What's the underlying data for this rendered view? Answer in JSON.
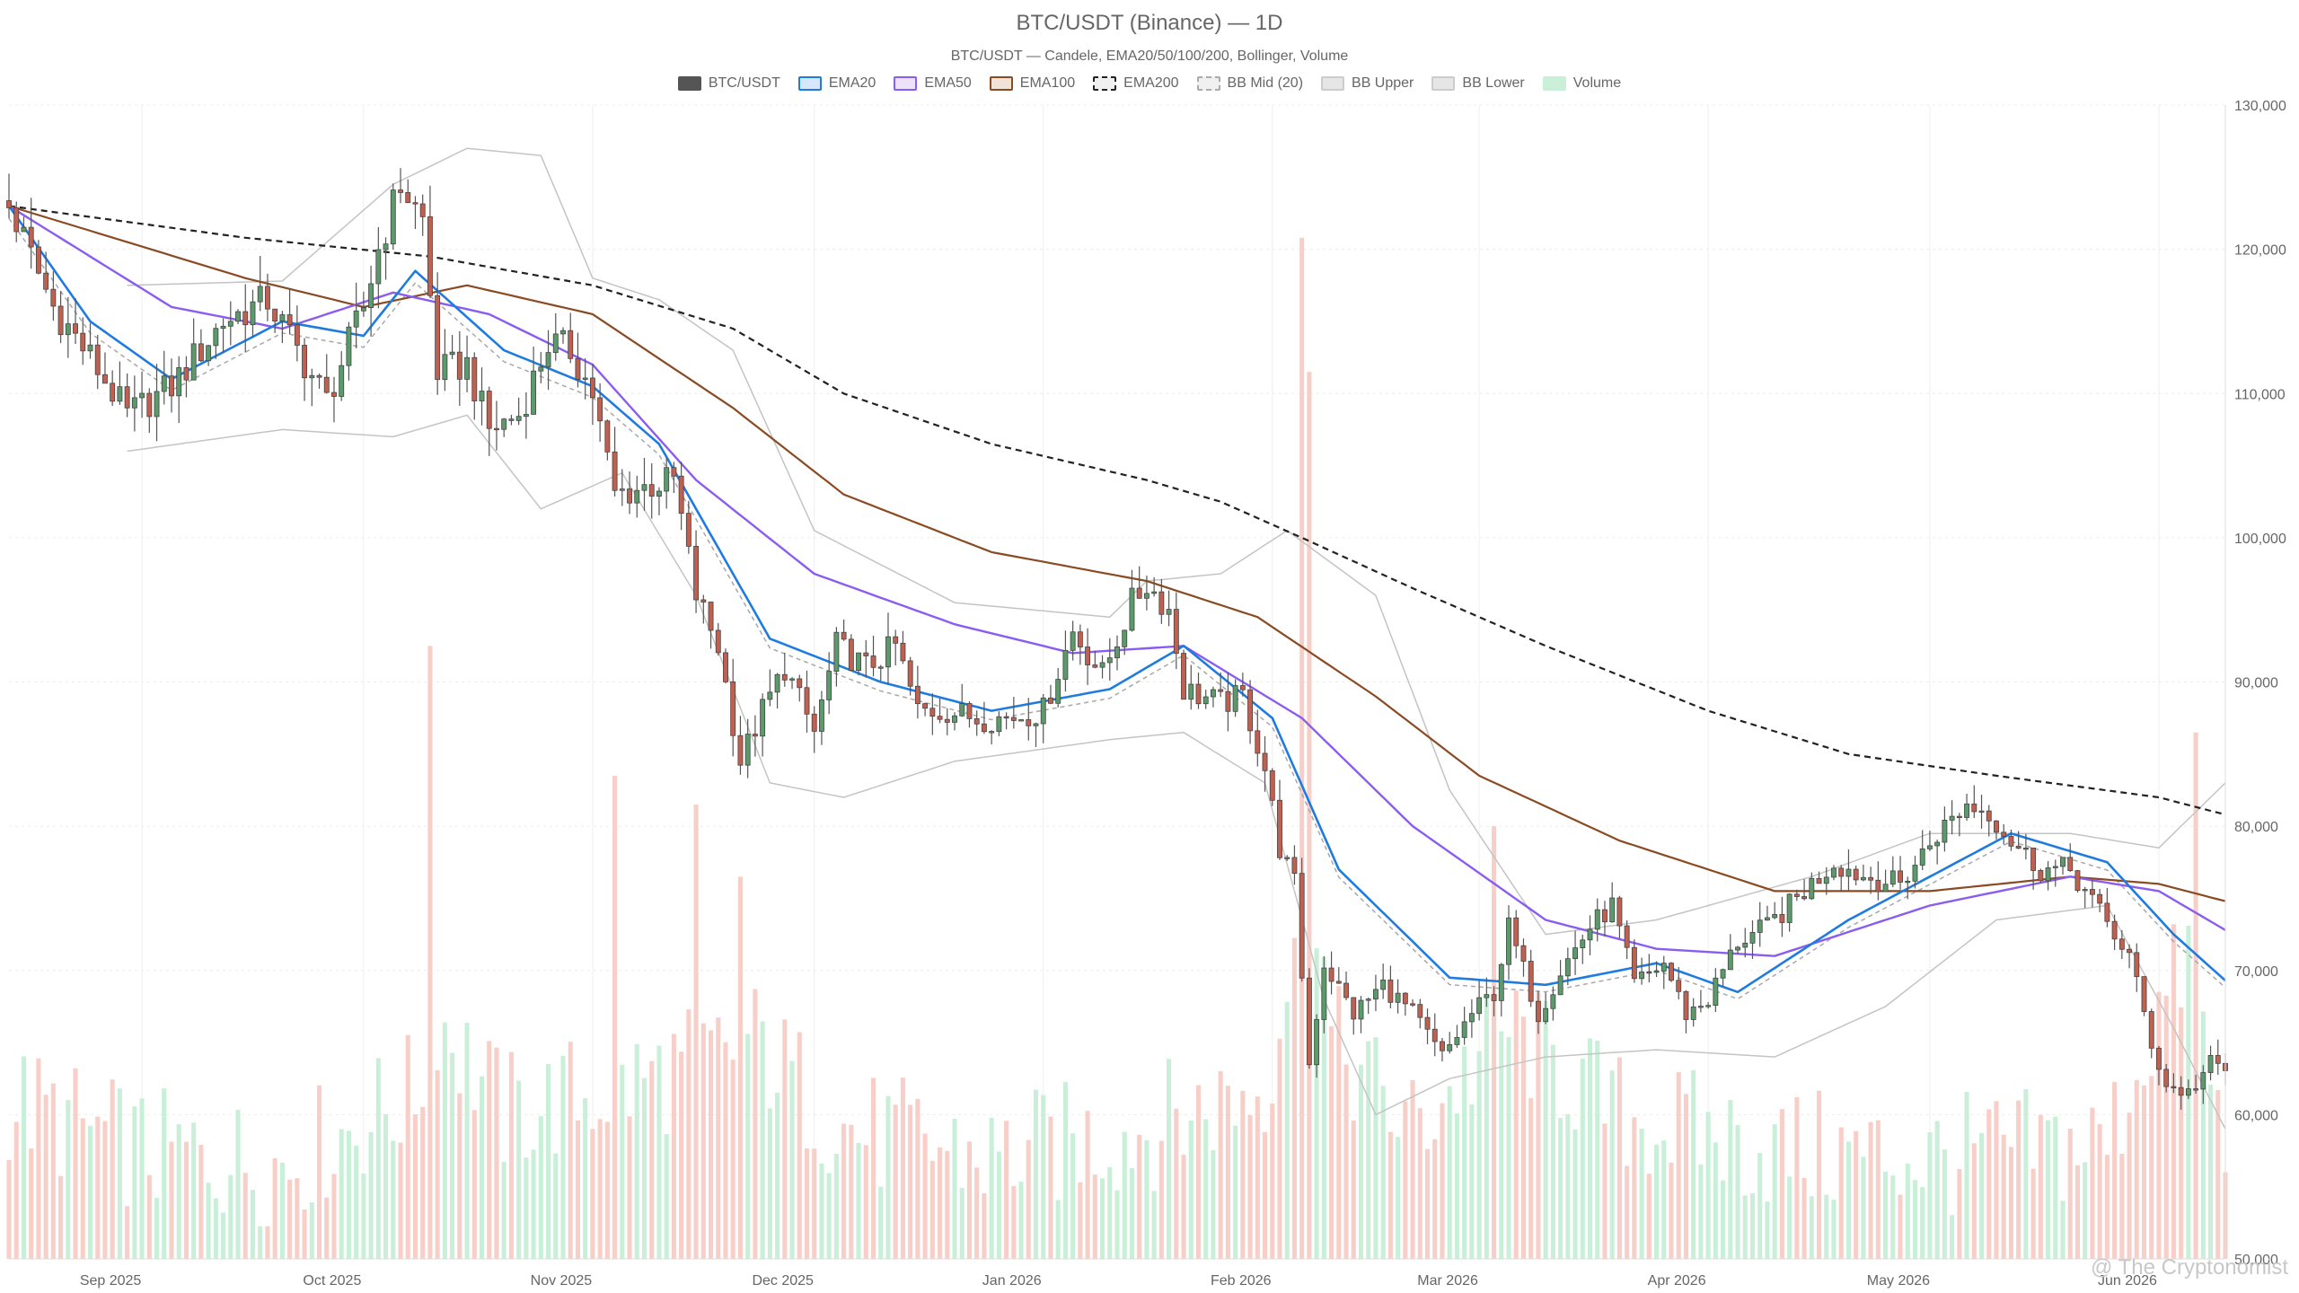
{
  "chart_data": {
    "type": "candlestick",
    "title": "BTC/USDT (Binance) — 1D",
    "subtitle": "BTC/USDT — Candele, EMA20/50/100/200, Bollinger, Volume",
    "legend": [
      {
        "name": "BTC/USDT",
        "fill": "#555555",
        "border": "#555555",
        "dashed": false
      },
      {
        "name": "EMA20",
        "fill": "#d6e6fb",
        "border": "#1e7be0",
        "dashed": false
      },
      {
        "name": "EMA50",
        "fill": "#ece2fb",
        "border": "#8b5cf0",
        "dashed": false
      },
      {
        "name": "EMA100",
        "fill": "#f1e3d8",
        "border": "#8a4a22",
        "dashed": false
      },
      {
        "name": "EMA200",
        "fill": "#f0f0f0",
        "border": "#222222",
        "dashed": true
      },
      {
        "name": "BB Mid (20)",
        "fill": "#f0f0f0",
        "border": "#aaaaaa",
        "dashed": true
      },
      {
        "name": "BB Upper",
        "fill": "#e6e6e6",
        "border": "#cccccc",
        "dashed": false
      },
      {
        "name": "BB Lower",
        "fill": "#e6e6e6",
        "border": "#cccccc",
        "dashed": false
      },
      {
        "name": "Volume",
        "fill": "#c9efd9",
        "border": "#c9efd9",
        "dashed": false
      }
    ],
    "y_axis": {
      "min": 50000,
      "max": 130000,
      "ticks": [
        50000,
        60000,
        70000,
        80000,
        90000,
        100000,
        110000,
        120000,
        130000
      ],
      "tick_labels": [
        "50,000",
        "60,000",
        "70,000",
        "80,000",
        "90,000",
        "100,000",
        "110,000",
        "120,000",
        "130,000"
      ],
      "position": "right"
    },
    "x_axis": {
      "start": "2025-08-14",
      "end": "2026-06-10",
      "ticks": [
        {
          "date": "2025-09-01",
          "label": "Sep 2025"
        },
        {
          "date": "2025-10-01",
          "label": "Oct 2025"
        },
        {
          "date": "2025-11-01",
          "label": "Nov 2025"
        },
        {
          "date": "2025-12-01",
          "label": "Dec 2025"
        },
        {
          "date": "2026-01-01",
          "label": "Jan 2026"
        },
        {
          "date": "2026-02-01",
          "label": "Feb 2026"
        },
        {
          "date": "2026-03-01",
          "label": "Mar 2026"
        },
        {
          "date": "2026-04-01",
          "label": "Apr 2026"
        },
        {
          "date": "2026-05-01",
          "label": "May 2026"
        },
        {
          "date": "2026-06-01",
          "label": "Jun 2026"
        }
      ]
    },
    "grid": true,
    "colors": {
      "up": "#5b9a6a",
      "down": "#c06050",
      "vol_up": "#c9efd9",
      "vol_down": "#f7cfc8",
      "ema20": "#1e7be0",
      "ema50": "#8b5cf0",
      "ema100": "#8a4a22",
      "ema200": "#222222",
      "bb_mid": "#a8a8a8",
      "bb_band": "#c4c4c4"
    },
    "close_path": [
      [
        "2025-08-14",
        123000
      ],
      [
        "2025-08-20",
        116000
      ],
      [
        "2025-08-25",
        112500
      ],
      [
        "2025-08-30",
        108500
      ],
      [
        "2025-09-05",
        110500
      ],
      [
        "2025-09-12",
        115000
      ],
      [
        "2025-09-18",
        116500
      ],
      [
        "2025-09-22",
        113000
      ],
      [
        "2025-09-26",
        109500
      ],
      [
        "2025-10-01",
        116000
      ],
      [
        "2025-10-03",
        120000
      ],
      [
        "2025-10-06",
        124500
      ],
      [
        "2025-10-09",
        122000
      ],
      [
        "2025-10-11",
        111500
      ],
      [
        "2025-10-15",
        112000
      ],
      [
        "2025-10-18",
        107500
      ],
      [
        "2025-10-22",
        108500
      ],
      [
        "2025-10-26",
        113500
      ],
      [
        "2025-10-29",
        113000
      ],
      [
        "2025-11-01",
        110000
      ],
      [
        "2025-11-04",
        103000
      ],
      [
        "2025-11-08",
        103500
      ],
      [
        "2025-11-12",
        104000
      ],
      [
        "2025-11-15",
        96000
      ],
      [
        "2025-11-18",
        92500
      ],
      [
        "2025-11-21",
        84500
      ],
      [
        "2025-11-24",
        88000
      ],
      [
        "2025-11-27",
        91000
      ],
      [
        "2025-12-01",
        86500
      ],
      [
        "2025-12-04",
        92500
      ],
      [
        "2025-12-08",
        91000
      ],
      [
        "2025-12-12",
        92500
      ],
      [
        "2025-12-15",
        88000
      ],
      [
        "2025-12-19",
        88000
      ],
      [
        "2025-12-23",
        87500
      ],
      [
        "2025-12-27",
        87500
      ],
      [
        "2026-01-01",
        88000
      ],
      [
        "2026-01-05",
        93500
      ],
      [
        "2026-01-09",
        90500
      ],
      [
        "2026-01-13",
        95500
      ],
      [
        "2026-01-15",
        96800
      ],
      [
        "2026-01-18",
        95000
      ],
      [
        "2026-01-20",
        89500
      ],
      [
        "2026-01-25",
        88500
      ],
      [
        "2026-01-28",
        89000
      ],
      [
        "2026-01-31",
        84000
      ],
      [
        "2026-02-02",
        78500
      ],
      [
        "2026-02-04",
        76000
      ],
      [
        "2026-02-06",
        63500
      ],
      [
        "2026-02-08",
        70500
      ],
      [
        "2026-02-12",
        67000
      ],
      [
        "2026-02-16",
        69000
      ],
      [
        "2026-02-20",
        67000
      ],
      [
        "2026-02-24",
        64000
      ],
      [
        "2026-02-28",
        67000
      ],
      [
        "2026-03-03",
        68500
      ],
      [
        "2026-03-05",
        73000
      ],
      [
        "2026-03-09",
        67000
      ],
      [
        "2026-03-12",
        70000
      ],
      [
        "2026-03-16",
        73000
      ],
      [
        "2026-03-19",
        74500
      ],
      [
        "2026-03-22",
        69000
      ],
      [
        "2026-03-26",
        70500
      ],
      [
        "2026-03-29",
        67000
      ],
      [
        "2026-04-01",
        68000
      ],
      [
        "2026-04-05",
        72000
      ],
      [
        "2026-04-09",
        73000
      ],
      [
        "2026-04-13",
        75000
      ],
      [
        "2026-04-18",
        77500
      ],
      [
        "2026-04-22",
        76500
      ],
      [
        "2026-04-27",
        76000
      ],
      [
        "2026-05-02",
        79500
      ],
      [
        "2026-05-06",
        81500
      ],
      [
        "2026-05-09",
        81000
      ],
      [
        "2026-05-12",
        79000
      ],
      [
        "2026-05-16",
        77000
      ],
      [
        "2026-05-20",
        77000
      ],
      [
        "2026-05-24",
        74000
      ],
      [
        "2026-05-28",
        71000
      ],
      [
        "2026-05-31",
        65000
      ],
      [
        "2026-06-02",
        62000
      ],
      [
        "2026-06-05",
        61500
      ],
      [
        "2026-06-08",
        63500
      ],
      [
        "2026-06-10",
        63000
      ]
    ],
    "volume_path": [
      [
        "2025-08-14",
        61000
      ],
      [
        "2025-09-01",
        57500
      ],
      [
        "2025-09-20",
        56500
      ],
      [
        "2025-10-08",
        61500
      ],
      [
        "2025-10-11",
        67000
      ],
      [
        "2025-10-20",
        60000
      ],
      [
        "2025-11-05",
        62000
      ],
      [
        "2025-11-18",
        64000
      ],
      [
        "2025-11-22",
        65500
      ],
      [
        "2025-12-05",
        59000
      ],
      [
        "2025-12-25",
        57000
      ],
      [
        "2026-01-15",
        59000
      ],
      [
        "2026-01-31",
        62000
      ],
      [
        "2026-02-05",
        75000
      ],
      [
        "2026-02-06",
        81000
      ],
      [
        "2026-02-09",
        65000
      ],
      [
        "2026-02-20",
        59000
      ],
      [
        "2026-03-05",
        66000
      ],
      [
        "2026-03-20",
        60000
      ],
      [
        "2026-04-10",
        57500
      ],
      [
        "2026-05-01",
        57000
      ],
      [
        "2026-05-25",
        58000
      ],
      [
        "2026-06-01",
        67000
      ],
      [
        "2026-06-05",
        71000
      ],
      [
        "2026-06-10",
        57000
      ]
    ],
    "volume_spikes": [
      {
        "date": "2025-10-10",
        "value": 92500
      },
      {
        "date": "2025-11-04",
        "value": 83500
      },
      {
        "date": "2025-11-15",
        "value": 81500
      },
      {
        "date": "2025-11-21",
        "value": 76500
      },
      {
        "date": "2026-02-05",
        "value": 120800
      },
      {
        "date": "2026-02-06",
        "value": 111500
      },
      {
        "date": "2026-03-03",
        "value": 80000
      },
      {
        "date": "2026-06-06",
        "value": 86500
      }
    ],
    "ema200_path": [
      [
        "2025-08-14",
        123000
      ],
      [
        "2025-09-15",
        120800
      ],
      [
        "2025-10-10",
        119500
      ],
      [
        "2025-11-01",
        117500
      ],
      [
        "2025-11-20",
        114500
      ],
      [
        "2025-12-05",
        110000
      ],
      [
        "2025-12-25",
        106500
      ],
      [
        "2026-01-15",
        104000
      ],
      [
        "2026-01-25",
        102500
      ],
      [
        "2026-02-05",
        100000
      ],
      [
        "2026-02-20",
        96500
      ],
      [
        "2026-03-10",
        92500
      ],
      [
        "2026-04-01",
        88000
      ],
      [
        "2026-04-20",
        85000
      ],
      [
        "2026-05-10",
        83500
      ],
      [
        "2026-06-01",
        82000
      ],
      [
        "2026-06-10",
        80800
      ]
    ],
    "ema100_path": [
      [
        "2025-08-14",
        123000
      ],
      [
        "2025-09-15",
        118000
      ],
      [
        "2025-10-01",
        116000
      ],
      [
        "2025-10-15",
        117500
      ],
      [
        "2025-11-01",
        115500
      ],
      [
        "2025-11-20",
        109000
      ],
      [
        "2025-12-05",
        103000
      ],
      [
        "2025-12-25",
        99000
      ],
      [
        "2026-01-15",
        97000
      ],
      [
        "2026-01-30",
        94500
      ],
      [
        "2026-02-15",
        89000
      ],
      [
        "2026-03-01",
        83500
      ],
      [
        "2026-03-20",
        79000
      ],
      [
        "2026-04-10",
        75500
      ],
      [
        "2026-05-01",
        75500
      ],
      [
        "2026-05-20",
        76500
      ],
      [
        "2026-06-01",
        76000
      ],
      [
        "2026-06-10",
        74800
      ]
    ],
    "ema50_path": [
      [
        "2025-08-14",
        123000
      ],
      [
        "2025-09-05",
        116000
      ],
      [
        "2025-09-20",
        114500
      ],
      [
        "2025-10-05",
        117000
      ],
      [
        "2025-10-18",
        115500
      ],
      [
        "2025-11-01",
        112000
      ],
      [
        "2025-11-15",
        104000
      ],
      [
        "2025-12-01",
        97500
      ],
      [
        "2025-12-20",
        94000
      ],
      [
        "2026-01-05",
        92000
      ],
      [
        "2026-01-20",
        92500
      ],
      [
        "2026-02-05",
        87500
      ],
      [
        "2026-02-20",
        80000
      ],
      [
        "2026-03-10",
        73500
      ],
      [
        "2026-03-25",
        71500
      ],
      [
        "2026-04-10",
        71000
      ],
      [
        "2026-05-01",
        74500
      ],
      [
        "2026-05-20",
        76500
      ],
      [
        "2026-06-01",
        75500
      ],
      [
        "2026-06-10",
        72800
      ]
    ],
    "ema20_path": [
      [
        "2025-08-14",
        123000
      ],
      [
        "2025-08-25",
        115000
      ],
      [
        "2025-09-05",
        111000
      ],
      [
        "2025-09-20",
        115000
      ],
      [
        "2025-10-01",
        114000
      ],
      [
        "2025-10-08",
        118500
      ],
      [
        "2025-10-20",
        113000
      ],
      [
        "2025-11-01",
        110500
      ],
      [
        "2025-11-10",
        106500
      ],
      [
        "2025-11-25",
        93000
      ],
      [
        "2025-12-10",
        90000
      ],
      [
        "2025-12-25",
        88000
      ],
      [
        "2026-01-10",
        89500
      ],
      [
        "2026-01-20",
        92500
      ],
      [
        "2026-02-01",
        87500
      ],
      [
        "2026-02-10",
        77000
      ],
      [
        "2026-02-25",
        69500
      ],
      [
        "2026-03-10",
        69000
      ],
      [
        "2026-03-25",
        70500
      ],
      [
        "2026-04-05",
        68500
      ],
      [
        "2026-04-20",
        73500
      ],
      [
        "2026-05-01",
        76500
      ],
      [
        "2026-05-12",
        79500
      ],
      [
        "2026-05-25",
        77500
      ],
      [
        "2026-06-03",
        72500
      ],
      [
        "2026-06-10",
        69300
      ]
    ],
    "bb_upper_path": [
      [
        "2025-08-30",
        117500
      ],
      [
        "2025-09-20",
        117800
      ],
      [
        "2025-10-05",
        124500
      ],
      [
        "2025-10-15",
        127000
      ],
      [
        "2025-10-25",
        126500
      ],
      [
        "2025-11-01",
        118000
      ],
      [
        "2025-11-10",
        116500
      ],
      [
        "2025-11-20",
        113000
      ],
      [
        "2025-12-01",
        100500
      ],
      [
        "2025-12-20",
        95500
      ],
      [
        "2026-01-10",
        94500
      ],
      [
        "2026-01-15",
        97000
      ],
      [
        "2026-01-25",
        97500
      ],
      [
        "2026-02-03",
        100500
      ],
      [
        "2026-02-15",
        96000
      ],
      [
        "2026-02-25",
        82500
      ],
      [
        "2026-03-10",
        72500
      ],
      [
        "2026-03-25",
        73500
      ],
      [
        "2026-04-15",
        76500
      ],
      [
        "2026-05-01",
        79500
      ],
      [
        "2026-05-20",
        79500
      ],
      [
        "2026-06-01",
        78500
      ],
      [
        "2026-06-10",
        83000
      ]
    ],
    "bb_lower_path": [
      [
        "2025-08-30",
        106000
      ],
      [
        "2025-09-20",
        107500
      ],
      [
        "2025-10-05",
        107000
      ],
      [
        "2025-10-15",
        108500
      ],
      [
        "2025-10-25",
        102000
      ],
      [
        "2025-11-05",
        104500
      ],
      [
        "2025-11-15",
        96000
      ],
      [
        "2025-11-25",
        83000
      ],
      [
        "2025-12-05",
        82000
      ],
      [
        "2025-12-20",
        84500
      ],
      [
        "2026-01-10",
        86000
      ],
      [
        "2026-01-20",
        86500
      ],
      [
        "2026-01-31",
        83000
      ],
      [
        "2026-02-08",
        68000
      ],
      [
        "2026-02-15",
        60000
      ],
      [
        "2026-02-25",
        62500
      ],
      [
        "2026-03-10",
        64000
      ],
      [
        "2026-03-25",
        64500
      ],
      [
        "2026-04-10",
        64000
      ],
      [
        "2026-04-25",
        67500
      ],
      [
        "2026-05-10",
        73500
      ],
      [
        "2026-05-25",
        74500
      ],
      [
        "2026-06-03",
        66000
      ],
      [
        "2026-06-10",
        59000
      ]
    ]
  },
  "watermark": "@ The Cryptonomist"
}
